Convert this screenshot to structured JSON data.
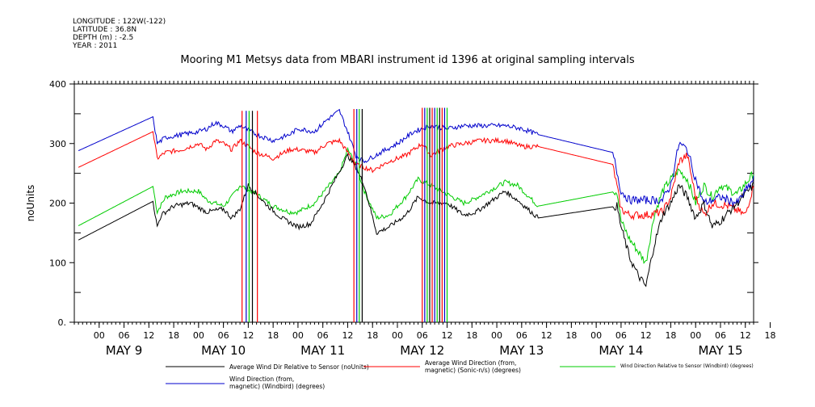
{
  "metadata": [
    "LONGITUDE : 122W(-122)",
    "LATITUDE : 36.8N",
    "DEPTH (m) : -2.5",
    "YEAR : 2011"
  ],
  "chart_data": {
    "type": "line",
    "title": "Mooring M1 Metsys data from MBARI instrument id 1396 at original sampling intervals",
    "ylabel": "noUnits",
    "xlabel": "",
    "ylim": [
      0,
      400
    ],
    "yticks": [
      0,
      100,
      200,
      300,
      400
    ],
    "ytick_labels": [
      "0.",
      "100",
      "200",
      "300",
      "400"
    ],
    "xlim_hours": [
      -6,
      158
    ],
    "hour_ticks": [
      {
        "h": 0,
        "label": "00"
      },
      {
        "h": 6,
        "label": "06"
      },
      {
        "h": 12,
        "label": "12"
      },
      {
        "h": 18,
        "label": "18"
      },
      {
        "h": 24,
        "label": "00"
      },
      {
        "h": 30,
        "label": "06"
      },
      {
        "h": 36,
        "label": "12"
      },
      {
        "h": 42,
        "label": "18"
      },
      {
        "h": 48,
        "label": "00"
      },
      {
        "h": 54,
        "label": "06"
      },
      {
        "h": 60,
        "label": "12"
      },
      {
        "h": 66,
        "label": "18"
      },
      {
        "h": 72,
        "label": "00"
      },
      {
        "h": 78,
        "label": "06"
      },
      {
        "h": 84,
        "label": "12"
      },
      {
        "h": 90,
        "label": "18"
      },
      {
        "h": 96,
        "label": "00"
      },
      {
        "h": 102,
        "label": "06"
      },
      {
        "h": 108,
        "label": "12"
      },
      {
        "h": 114,
        "label": "18"
      },
      {
        "h": 120,
        "label": "00"
      },
      {
        "h": 126,
        "label": "06"
      },
      {
        "h": 132,
        "label": "12"
      },
      {
        "h": 138,
        "label": "18"
      },
      {
        "h": 144,
        "label": "00"
      },
      {
        "h": 150,
        "label": "06"
      },
      {
        "h": 156,
        "label": "12"
      },
      {
        "h": 162,
        "label": "18"
      }
    ],
    "date_labels": [
      {
        "h": 6,
        "label": "MAY  9"
      },
      {
        "h": 30,
        "label": "MAY 10"
      },
      {
        "h": 54,
        "label": "MAY 11"
      },
      {
        "h": 78,
        "label": "MAY 12"
      },
      {
        "h": 102,
        "label": "MAY 13"
      },
      {
        "h": 126,
        "label": "MAY 14"
      },
      {
        "h": 150,
        "label": "MAY 15"
      }
    ],
    "series": [
      {
        "name": "Average Wind Dir Relative to Sensor (noUnits)",
        "color": "#000000",
        "points": [
          [
            -5,
            138
          ],
          [
            13,
            203
          ],
          [
            14,
            160
          ],
          [
            15,
            180
          ],
          [
            18,
            195
          ],
          [
            22,
            200
          ],
          [
            26,
            185
          ],
          [
            30,
            190
          ],
          [
            32,
            175
          ],
          [
            34,
            190
          ],
          [
            36,
            230
          ],
          [
            40,
            200
          ],
          [
            44,
            175
          ],
          [
            48,
            160
          ],
          [
            51,
            165
          ],
          [
            54,
            200
          ],
          [
            57,
            240
          ],
          [
            60,
            280
          ],
          [
            62,
            260
          ],
          [
            64,
            230
          ],
          [
            67,
            150
          ],
          [
            70,
            160
          ],
          [
            74,
            180
          ],
          [
            77,
            210
          ],
          [
            80,
            200
          ],
          [
            84,
            200
          ],
          [
            88,
            180
          ],
          [
            91,
            185
          ],
          [
            94,
            200
          ],
          [
            98,
            220
          ],
          [
            101,
            205
          ],
          [
            106,
            175
          ],
          [
            125,
            195
          ],
          [
            126,
            160
          ],
          [
            128,
            110
          ],
          [
            130,
            80
          ],
          [
            132,
            60
          ],
          [
            134,
            130
          ],
          [
            136,
            180
          ],
          [
            138,
            200
          ],
          [
            140,
            230
          ],
          [
            142,
            210
          ],
          [
            144,
            175
          ],
          [
            146,
            200
          ],
          [
            148,
            160
          ],
          [
            150,
            170
          ],
          [
            154,
            200
          ],
          [
            158,
            230
          ]
        ]
      },
      {
        "name": "Average Wind Direction (from, magnetic) (Sonic-n/s) (degrees)",
        "color": "#ff0000",
        "points": [
          [
            -5,
            260
          ],
          [
            13,
            320
          ],
          [
            14,
            275
          ],
          [
            16,
            285
          ],
          [
            20,
            290
          ],
          [
            24,
            300
          ],
          [
            26,
            290
          ],
          [
            28,
            305
          ],
          [
            30,
            300
          ],
          [
            32,
            290
          ],
          [
            34,
            305
          ],
          [
            38,
            285
          ],
          [
            42,
            275
          ],
          [
            46,
            290
          ],
          [
            48,
            290
          ],
          [
            52,
            285
          ],
          [
            55,
            300
          ],
          [
            58,
            305
          ],
          [
            60,
            285
          ],
          [
            62,
            265
          ],
          [
            66,
            255
          ],
          [
            70,
            270
          ],
          [
            74,
            280
          ],
          [
            78,
            300
          ],
          [
            80,
            280
          ],
          [
            84,
            295
          ],
          [
            88,
            300
          ],
          [
            92,
            305
          ],
          [
            98,
            305
          ],
          [
            102,
            295
          ],
          [
            106,
            295
          ],
          [
            124,
            265
          ],
          [
            126,
            190
          ],
          [
            128,
            180
          ],
          [
            132,
            180
          ],
          [
            136,
            185
          ],
          [
            138,
            210
          ],
          [
            140,
            270
          ],
          [
            142,
            280
          ],
          [
            144,
            210
          ],
          [
            146,
            180
          ],
          [
            148,
            200
          ],
          [
            152,
            195
          ],
          [
            156,
            180
          ],
          [
            158,
            230
          ]
        ]
      },
      {
        "name": "Wind Direction Relative to Sensor (Windbird) (degrees)",
        "color": "#00cc00",
        "points": [
          [
            -5,
            162
          ],
          [
            13,
            228
          ],
          [
            14,
            185
          ],
          [
            16,
            210
          ],
          [
            20,
            220
          ],
          [
            24,
            220
          ],
          [
            26,
            205
          ],
          [
            28,
            200
          ],
          [
            30,
            195
          ],
          [
            32,
            210
          ],
          [
            34,
            230
          ],
          [
            38,
            215
          ],
          [
            42,
            195
          ],
          [
            46,
            185
          ],
          [
            48,
            185
          ],
          [
            52,
            200
          ],
          [
            55,
            225
          ],
          [
            58,
            250
          ],
          [
            60,
            290
          ],
          [
            62,
            265
          ],
          [
            64,
            220
          ],
          [
            67,
            175
          ],
          [
            70,
            180
          ],
          [
            74,
            210
          ],
          [
            77,
            240
          ],
          [
            80,
            230
          ],
          [
            84,
            215
          ],
          [
            88,
            200
          ],
          [
            90,
            205
          ],
          [
            94,
            220
          ],
          [
            98,
            235
          ],
          [
            101,
            230
          ],
          [
            106,
            195
          ],
          [
            125,
            220
          ],
          [
            126,
            170
          ],
          [
            128,
            140
          ],
          [
            130,
            120
          ],
          [
            132,
            100
          ],
          [
            134,
            180
          ],
          [
            136,
            220
          ],
          [
            138,
            240
          ],
          [
            140,
            255
          ],
          [
            142,
            240
          ],
          [
            144,
            200
          ],
          [
            146,
            230
          ],
          [
            148,
            210
          ],
          [
            150,
            230
          ],
          [
            154,
            215
          ],
          [
            158,
            250
          ]
        ]
      },
      {
        "name": "Wind Direction (from, magnetic) (Windbird) (degrees)",
        "color": "#0000cc",
        "points": [
          [
            -5,
            288
          ],
          [
            13,
            345
          ],
          [
            14,
            300
          ],
          [
            16,
            310
          ],
          [
            20,
            315
          ],
          [
            24,
            320
          ],
          [
            26,
            325
          ],
          [
            28,
            335
          ],
          [
            30,
            330
          ],
          [
            32,
            320
          ],
          [
            34,
            330
          ],
          [
            38,
            315
          ],
          [
            42,
            305
          ],
          [
            46,
            315
          ],
          [
            48,
            325
          ],
          [
            52,
            320
          ],
          [
            55,
            340
          ],
          [
            58,
            355
          ],
          [
            60,
            320
          ],
          [
            62,
            280
          ],
          [
            64,
            270
          ],
          [
            68,
            285
          ],
          [
            72,
            300
          ],
          [
            76,
            320
          ],
          [
            80,
            330
          ],
          [
            84,
            325
          ],
          [
            88,
            330
          ],
          [
            92,
            330
          ],
          [
            98,
            330
          ],
          [
            102,
            325
          ],
          [
            106,
            315
          ],
          [
            124,
            285
          ],
          [
            126,
            220
          ],
          [
            128,
            205
          ],
          [
            132,
            205
          ],
          [
            136,
            205
          ],
          [
            138,
            230
          ],
          [
            140,
            300
          ],
          [
            142,
            290
          ],
          [
            144,
            240
          ],
          [
            146,
            200
          ],
          [
            150,
            210
          ],
          [
            154,
            200
          ],
          [
            158,
            240
          ]
        ]
      }
    ],
    "dropout_bursts": [
      {
        "hours": [
          34.5,
          35.5,
          36.2,
          37.0,
          38.2
        ],
        "low": 0,
        "high": 355
      },
      {
        "hours": [
          61.5,
          62.2,
          62.8,
          63.5
        ],
        "low": 0,
        "high": 358
      },
      {
        "hours": [
          78.0,
          78.6,
          79.2,
          79.8,
          80.4,
          81.0,
          81.6,
          82.2,
          82.8,
          83.4,
          84.0
        ],
        "low": 0,
        "high": 360
      }
    ],
    "legend": [
      {
        "series": 0,
        "lines": [
          "Average Wind Dir Relative to Sensor (noUnits)"
        ]
      },
      {
        "series": 1,
        "lines": [
          "Average Wind Direction (from,",
          "magnetic) (Sonic-n/s) (degrees)"
        ]
      },
      {
        "series": 2,
        "lines": [
          "Wind Direction Relative to Sensor (Windbird) (degrees)"
        ]
      },
      {
        "series": 3,
        "lines": [
          "Wind Direction (from,",
          "magnetic) (Windbird) (degrees)"
        ]
      }
    ]
  }
}
